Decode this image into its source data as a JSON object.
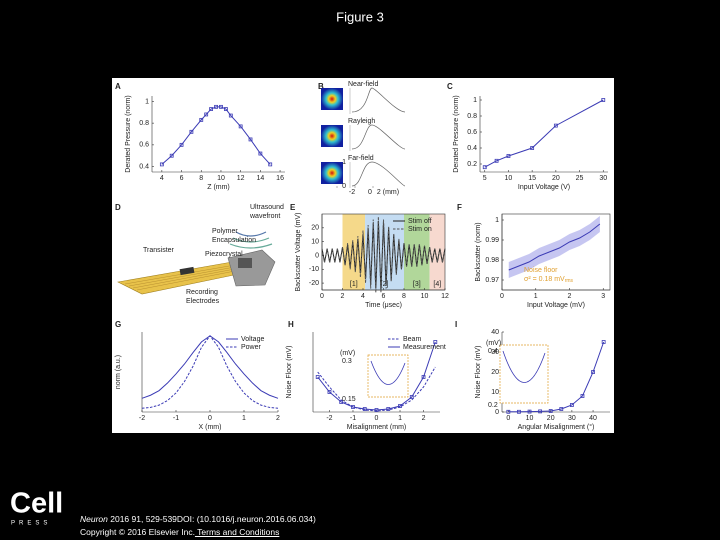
{
  "header": {
    "title": "Figure 3"
  },
  "figure": {
    "panels": [
      {
        "label": "A",
        "type": "line",
        "ylabel": "Derated Pressure (norm)",
        "xlabel": "Z (mm)",
        "xlim": [
          3,
          16.5
        ],
        "ylim": [
          0.35,
          1.05
        ],
        "xticks": [
          4,
          6,
          8,
          10,
          12,
          14,
          16
        ],
        "yticks": [
          0.4,
          0.6,
          0.8,
          1
        ],
        "series": [
          {
            "color": "#3b3bb5",
            "marker": "square",
            "x": [
              4,
              5,
              6,
              7,
              8,
              8.5,
              9,
              9.5,
              10,
              10.5,
              11,
              12,
              13,
              14,
              15
            ],
            "values": [
              0.42,
              0.5,
              0.6,
              0.72,
              0.83,
              0.88,
              0.93,
              0.95,
              0.95,
              0.93,
              0.87,
              0.77,
              0.65,
              0.52,
              0.42
            ]
          }
        ]
      },
      {
        "label": "B",
        "type": "profiles",
        "rows": [
          "Near-field",
          "Rayleigh",
          "Far-field"
        ],
        "xticks": [
          -2,
          0,
          {
            "value": 2,
            "label": "2 (mm)"
          }
        ],
        "yticks": [
          0,
          1
        ]
      },
      {
        "label": "C",
        "type": "line",
        "ylabel": "Derated Pressure (norm)",
        "xlabel": "Input Voltage (V)",
        "xlim": [
          4,
          31
        ],
        "ylim": [
          0.1,
          1.05
        ],
        "xticks": [
          5,
          10,
          15,
          20,
          25,
          30
        ],
        "yticks": [
          0.2,
          0.4,
          0.6,
          0.8,
          1
        ],
        "series": [
          {
            "color": "#3b3bb5",
            "marker": "square",
            "x": [
              5,
              7.5,
              10,
              15,
              20,
              30
            ],
            "values": [
              0.16,
              0.24,
              0.3,
              0.4,
              0.68,
              1.0
            ]
          }
        ]
      },
      {
        "label": "D",
        "type": "diagram",
        "callouts": [
          [
            "Ultrasound",
            "wavefront"
          ],
          [
            "Polymer",
            "Encapsulation"
          ],
          [
            "Piezocrystal"
          ],
          [
            "Transister"
          ],
          [
            "Recording",
            "Electrodes"
          ]
        ]
      },
      {
        "label": "E",
        "type": "line",
        "ylabel": "Backscatter Voltage (mV)",
        "xlabel": "Time (μsec)",
        "frame": true,
        "xlim": [
          0,
          12
        ],
        "ylim": [
          -25,
          30
        ],
        "xticks": [
          0,
          2,
          4,
          6,
          8,
          10,
          12
        ],
        "yticks": [
          -20,
          -10,
          0,
          10,
          20
        ],
        "legend": "upper right",
        "regions": [
          {
            "label": "[1]",
            "start": 2,
            "end": 4.2,
            "color": "#f5d98a"
          },
          {
            "label": "[2]",
            "start": 4.2,
            "end": 8,
            "color": "#c4dcf2"
          },
          {
            "label": "[3]",
            "start": 8,
            "end": 10.5,
            "color": "#b1d79a"
          },
          {
            "label": "[4]",
            "start": 10.5,
            "end": 12,
            "color": "#f7d9cf"
          }
        ],
        "series": [
          {
            "name": "Stim off",
            "color": "#222222",
            "x": [
              0,
              0.25,
              0.5,
              0.75,
              1,
              1.25,
              1.5,
              1.75,
              2,
              2.25,
              2.5,
              2.75,
              3,
              3.25,
              3.5,
              3.75,
              4,
              4.25,
              4.5,
              4.75,
              5,
              5.25,
              5.5,
              5.75,
              6,
              6.25,
              6.5,
              6.75,
              7,
              7.25,
              7.5,
              7.75,
              8,
              8.25,
              8.5,
              8.75,
              9,
              9.25,
              9.5,
              9.75,
              10,
              10.25,
              10.5,
              10.75,
              11,
              11.25,
              11.5,
              11.75,
              12
            ],
            "values": [
              5,
              -5,
              5,
              -5,
              5,
              -5,
              5,
              -5,
              6,
              -7,
              8,
              -9,
              10,
              -11,
              12,
              -13,
              15,
              -17,
              19,
              -21,
              23,
              -24,
              25,
              -25,
              24,
              -22,
              20,
              -18,
              15,
              -13,
              11,
              -10,
              9,
              -8,
              8,
              -8,
              8,
              -8,
              8,
              -7,
              7,
              -6,
              6,
              -5,
              5,
              -5,
              5,
              -5,
              5
            ]
          },
          {
            "name": "Stim on",
            "color": "#555555",
            "dash": true,
            "x": [
              0,
              0.25,
              0.5,
              0.75,
              1,
              1.25,
              1.5,
              1.75,
              2,
              2.25,
              2.5,
              2.75,
              3,
              3.25,
              3.5,
              3.75,
              4,
              4.25,
              4.5,
              4.75,
              5,
              5.25,
              5.5,
              5.75,
              6,
              6.25,
              6.5,
              6.75,
              7,
              7.25,
              7.5,
              7.75,
              8,
              8.25,
              8.5,
              8.75,
              9,
              9.25,
              9.5,
              9.75,
              10,
              10.25,
              10.5,
              10.75,
              11,
              11.25,
              11.5,
              11.75,
              12
            ],
            "values": [
              5,
              -5,
              5,
              -5,
              5,
              -5,
              5,
              -5,
              6,
              -7,
              9,
              -10,
              11,
              -12,
              14,
              -16,
              18,
              -20,
              22,
              -24,
              26,
              -27,
              28,
              -27,
              26,
              -24,
              21,
              -19,
              16,
              -14,
              12,
              -10,
              9,
              -8,
              8,
              -8,
              8,
              -8,
              8,
              -7,
              7,
              -6,
              6,
              -5,
              5,
              -5,
              5,
              -5,
              5
            ]
          }
        ]
      },
      {
        "label": "F",
        "type": "line",
        "ylabel": "Backscatter (norm)",
        "xlabel": "Input Voltage (mV)",
        "frame": true,
        "xlim": [
          0,
          3.2
        ],
        "ylim": [
          0.965,
          1.003
        ],
        "xticks": [
          0,
          1,
          2,
          3
        ],
        "yticks": [
          0.97,
          0.98,
          0.99,
          1
        ],
        "annotations": [
          {
            "text": "Noise floor",
            "color": "#e0a030"
          },
          {
            "text": "σ² = 0.18 mV",
            "sub": "rms",
            "color": "#e0a030"
          }
        ],
        "series": [
          {
            "color": "#3b3bb5",
            "band_color": "#b8b8ee",
            "x": [
              0.2,
              0.5,
              0.8,
              1.1,
              1.4,
              1.7,
              2.0,
              2.3,
              2.6,
              2.9
            ],
            "values": [
              0.975,
              0.977,
              0.979,
              0.982,
              0.984,
              0.986,
              0.989,
              0.991,
              0.994,
              0.998
            ],
            "error": [
              0.004,
              0.004,
              0.004,
              0.004,
              0.004,
              0.004,
              0.004,
              0.004,
              0.004,
              0.004
            ]
          }
        ]
      },
      {
        "label": "G",
        "type": "line",
        "ylabel": "norm (a.u.)",
        "xlabel": "X (mm)",
        "xlim": [
          -2,
          2
        ],
        "ylim": [
          0,
          1.05
        ],
        "xticks": [
          -2,
          -1,
          0,
          1,
          2
        ],
        "legend": "upper right",
        "series": [
          {
            "name": "Voltage",
            "color": "#3b3bb5",
            "x": [
              -2,
              -1.75,
              -1.5,
              -1.25,
              -1,
              -0.75,
              -0.5,
              -0.25,
              0,
              0.25,
              0.5,
              0.75,
              1,
              1.25,
              1.5,
              1.75,
              2
            ],
            "values": [
              0.18,
              0.22,
              0.28,
              0.38,
              0.5,
              0.63,
              0.78,
              0.92,
              1.0,
              0.92,
              0.78,
              0.63,
              0.5,
              0.38,
              0.28,
              0.22,
              0.18
            ]
          },
          {
            "name": "Power",
            "color": "#3b3bb5",
            "dash": true,
            "x": [
              -2,
              -1.75,
              -1.5,
              -1.25,
              -1,
              -0.75,
              -0.5,
              -0.25,
              0,
              0.25,
              0.5,
              0.75,
              1,
              1.25,
              1.5,
              1.75,
              2
            ],
            "values": [
              0.05,
              0.06,
              0.09,
              0.15,
              0.25,
              0.4,
              0.6,
              0.85,
              1.0,
              0.85,
              0.6,
              0.4,
              0.25,
              0.15,
              0.09,
              0.06,
              0.05
            ]
          }
        ]
      },
      {
        "label": "H",
        "type": "line",
        "ylabel": "Noise Floor (mV)",
        "xlabel": "Misalignment (mm)",
        "xlim": [
          -2.7,
          2.7
        ],
        "ylim": [
          0,
          0.8
        ],
        "xticks": [
          -2,
          -1,
          0,
          1,
          2
        ],
        "legend": "upper right",
        "inset": {
          "unit": "(mV)",
          "yticks": [
            0.3,
            0.15
          ]
        },
        "series": [
          {
            "name": "Beam",
            "color": "#3b3bb5",
            "dash": true,
            "x": [
              -2.5,
              -2,
              -1.5,
              -1,
              -0.5,
              0,
              0.5,
              1,
              1.5,
              2,
              2.5
            ],
            "values": [
              0.4,
              0.25,
              0.12,
              0.05,
              0.02,
              0.01,
              0.02,
              0.05,
              0.12,
              0.25,
              0.45
            ]
          },
          {
            "name": "Measurement",
            "color": "#3b3bb5",
            "marker": "square",
            "x": [
              -2.5,
              -2,
              -1.5,
              -1,
              -0.5,
              0,
              0.5,
              1,
              1.5,
              2,
              2.5
            ],
            "values": [
              0.35,
              0.2,
              0.1,
              0.05,
              0.03,
              0.02,
              0.03,
              0.06,
              0.15,
              0.35,
              0.7
            ]
          }
        ]
      },
      {
        "label": "I",
        "type": "line",
        "ylabel": "Noise Floor (mV)",
        "xlabel": "Angular Misalignment (°)",
        "xlim": [
          -3,
          48
        ],
        "ylim": [
          0,
          40
        ],
        "xticks": [
          0,
          10,
          20,
          30,
          40
        ],
        "yticks": [
          0,
          10,
          20,
          30,
          40
        ],
        "inset": {
          "unit": "(mV)",
          "yticks": [
            0.4,
            0.2
          ]
        },
        "series": [
          {
            "color": "#3b3bb5",
            "marker": "square",
            "x": [
              0,
              5,
              10,
              15,
              20,
              25,
              30,
              35,
              40,
              45
            ],
            "values": [
              0.1,
              0.1,
              0.2,
              0.3,
              0.5,
              1.5,
              3.5,
              8,
              20,
              35
            ]
          }
        ]
      }
    ]
  },
  "footer": {
    "logo": "Cell",
    "logo_sub": "PRESS",
    "journal": "Neuron",
    "citation": " 2016 91, 529-539DOI: (10.1016/j.neuron.2016.06.034)",
    "copyright": "Copyright © 2016 Elsevier Inc.",
    "link": " Terms and Conditions"
  }
}
